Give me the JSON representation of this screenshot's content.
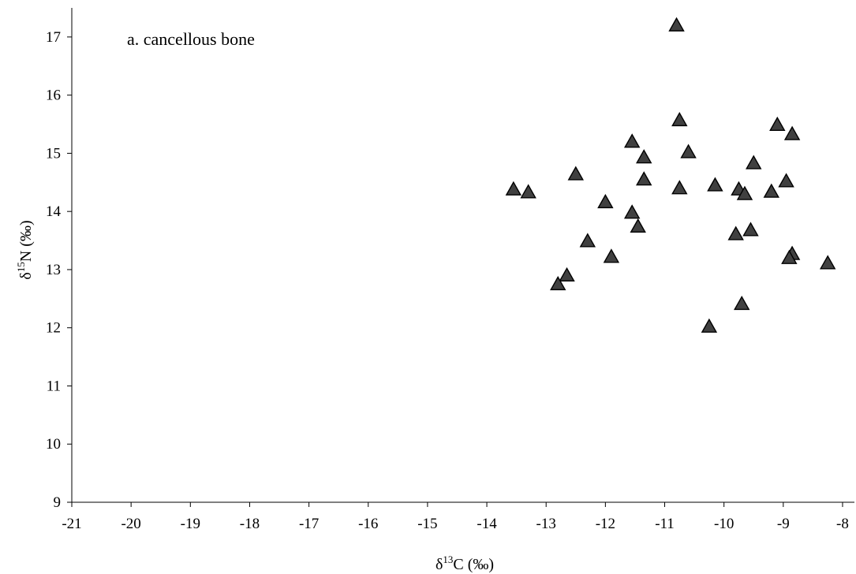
{
  "chart_data": {
    "type": "scatter",
    "annotation": "a. cancellous bone",
    "xlabel": {
      "prefix": "δ",
      "sup": "13",
      "suffix": "C (‰)"
    },
    "ylabel": {
      "prefix": "δ",
      "sup": "15",
      "suffix": "N (‰)"
    },
    "xlim": [
      -21,
      -7.8
    ],
    "ylim": [
      9,
      17.5
    ],
    "xticks": [
      -21,
      -20,
      -19,
      -18,
      -17,
      -16,
      -15,
      -14,
      -13,
      -12,
      -11,
      -10,
      -9,
      -8
    ],
    "yticks": [
      9,
      10,
      11,
      12,
      13,
      14,
      15,
      16,
      17
    ],
    "grid": false,
    "marker": {
      "shape": "triangle",
      "fill": "#404040",
      "stroke": "#000000"
    },
    "series": [
      {
        "points": [
          {
            "x": -10.8,
            "y": 17.2
          },
          {
            "x": -10.75,
            "y": 15.57
          },
          {
            "x": -11.55,
            "y": 15.2
          },
          {
            "x": -11.35,
            "y": 14.93
          },
          {
            "x": -10.6,
            "y": 15.02
          },
          {
            "x": -9.1,
            "y": 15.49
          },
          {
            "x": -8.85,
            "y": 15.33
          },
          {
            "x": -9.5,
            "y": 14.83
          },
          {
            "x": -13.55,
            "y": 14.38
          },
          {
            "x": -13.3,
            "y": 14.33
          },
          {
            "x": -12.5,
            "y": 14.64
          },
          {
            "x": -12.0,
            "y": 14.16
          },
          {
            "x": -11.35,
            "y": 14.55
          },
          {
            "x": -10.75,
            "y": 14.4
          },
          {
            "x": -10.15,
            "y": 14.45
          },
          {
            "x": -9.75,
            "y": 14.38
          },
          {
            "x": -9.65,
            "y": 14.3
          },
          {
            "x": -9.2,
            "y": 14.34
          },
          {
            "x": -8.95,
            "y": 14.52
          },
          {
            "x": -11.55,
            "y": 13.98
          },
          {
            "x": -11.45,
            "y": 13.74
          },
          {
            "x": -9.8,
            "y": 13.61
          },
          {
            "x": -9.55,
            "y": 13.68
          },
          {
            "x": -12.3,
            "y": 13.49
          },
          {
            "x": -11.9,
            "y": 13.22
          },
          {
            "x": -12.65,
            "y": 12.9
          },
          {
            "x": -12.8,
            "y": 12.75
          },
          {
            "x": -8.85,
            "y": 13.27
          },
          {
            "x": -8.9,
            "y": 13.2
          },
          {
            "x": -8.25,
            "y": 13.11
          },
          {
            "x": -9.7,
            "y": 12.41
          },
          {
            "x": -10.25,
            "y": 12.02
          }
        ]
      }
    ]
  }
}
